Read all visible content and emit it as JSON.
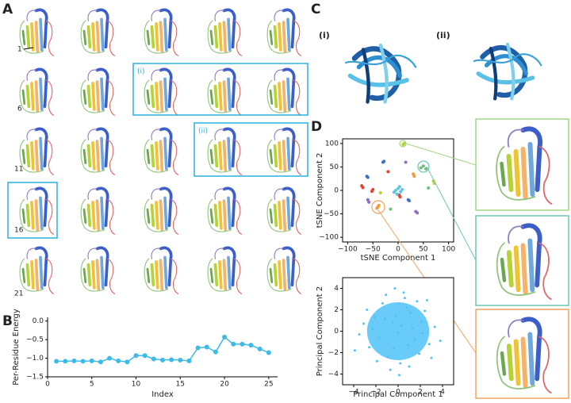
{
  "figure": {
    "panel_labels": [
      "A",
      "B",
      "C",
      "D"
    ],
    "model_indices": [
      "1",
      "6",
      "11",
      "16",
      "21"
    ],
    "subsets_a": [
      "(i)",
      "(ii)"
    ],
    "subsets_c": [
      "(i)",
      "(ii)"
    ]
  },
  "chart_data": [
    {
      "type": "line",
      "xlabel": "Index",
      "ylabel": "Per-Residue Energy",
      "color": "#3dbbe8",
      "x": [
        1,
        2,
        3,
        4,
        5,
        6,
        7,
        8,
        9,
        10,
        11,
        12,
        13,
        14,
        15,
        16,
        17,
        18,
        19,
        20,
        21,
        22,
        23,
        24,
        25
      ],
      "values": [
        -1.08,
        -1.08,
        -1.07,
        -1.08,
        -1.07,
        -1.1,
        -1.0,
        -1.07,
        -1.1,
        -0.93,
        -0.93,
        -1.02,
        -1.05,
        -1.04,
        -1.05,
        -1.07,
        -0.72,
        -0.7,
        -0.83,
        -0.43,
        -0.62,
        -0.62,
        -0.65,
        -0.75,
        -0.85
      ],
      "xlim": [
        0,
        26
      ],
      "ylim": [
        -1.5,
        0.1
      ],
      "xticks": [
        0,
        5,
        10,
        15,
        20,
        25
      ],
      "yticks": [
        {
          "value": 0,
          "label": "0.0"
        },
        {
          "value": -0.5,
          "label": "−0.5"
        },
        {
          "value": -1,
          "label": "−1.0"
        },
        {
          "value": -1.5,
          "label": "−1.5"
        }
      ]
    },
    {
      "type": "scatter",
      "xlabel": "tSNE Component 1",
      "ylabel": "tSNE Component 2",
      "xlim": [
        -110,
        110
      ],
      "ylim": [
        -110,
        110
      ],
      "xticks": [
        {
          "value": -100,
          "label": "−100"
        },
        {
          "value": -50,
          "label": "−50"
        },
        0,
        50,
        100
      ],
      "yticks": [
        {
          "value": -100,
          "label": "−100"
        },
        {
          "value": -50,
          "label": "−50"
        },
        0,
        50,
        100
      ],
      "series": [
        {
          "color": "#e8412c",
          "x": [
            -72,
            -70,
            -52,
            -50,
            2,
            4,
            -20
          ],
          "y": [
            10,
            6,
            -2,
            2,
            -10,
            -14,
            40
          ]
        },
        {
          "color": "#3a6fd8",
          "x": [
            -62,
            -60,
            -30,
            -28,
            20,
            22
          ],
          "y": [
            30,
            28,
            60,
            62,
            -20,
            -22
          ]
        },
        {
          "color": "#f29b38",
          "x": [
            -40,
            -38,
            -42,
            30,
            32
          ],
          "y": [
            -35,
            -32,
            -38,
            35,
            30
          ]
        },
        {
          "color": "#5cc8e0",
          "x": [
            -5,
            0,
            5,
            -2,
            3,
            8,
            -8
          ],
          "y": [
            0,
            4,
            -3,
            -8,
            8,
            2,
            -4
          ]
        },
        {
          "color": "#6cc07a",
          "x": [
            45,
            50,
            55,
            60,
            -15
          ],
          "y": [
            48,
            52,
            46,
            5,
            -40
          ]
        },
        {
          "color": "#b6d334",
          "x": [
            10,
            12,
            70,
            72,
            -35
          ],
          "y": [
            98,
            100,
            20,
            15,
            -5
          ]
        },
        {
          "color": "#8e6bc8",
          "x": [
            -60,
            -58,
            35,
            38,
            15
          ],
          "y": [
            -20,
            -25,
            -45,
            -48,
            60
          ]
        }
      ]
    },
    {
      "type": "scatter",
      "xlabel": "Principal Component 1",
      "ylabel": "Principal Component 2",
      "xlim": [
        -5,
        5
      ],
      "ylim": [
        -5,
        5
      ],
      "xticks": [
        {
          "value": -4,
          "label": "−4"
        },
        {
          "value": -2,
          "label": "−2"
        },
        0,
        2,
        4
      ],
      "yticks": [
        {
          "value": -4,
          "label": "−4"
        },
        {
          "value": -2,
          "label": "−2"
        },
        0,
        2,
        4
      ],
      "series": [
        {
          "color": "#4fc3f7",
          "x": [
            0.3,
            -1.2,
            1.5,
            -0.4,
            2.1,
            -2.3,
            0.8,
            -0.9,
            1.1,
            -1.7,
            0.2,
            2.8,
            -3.1,
            0.6,
            -0.2,
            1.9,
            -1.4,
            3.3,
            -2.6,
            0.0,
            1.3,
            -0.7,
            2.4,
            -1.9,
            0.5,
            -3.5,
            1.7,
            -0.5,
            3.0,
            -2.1,
            0.9,
            -1.1,
            2.2,
            -2.8,
            0.1,
            3.8,
            -3.9,
            1.0,
            -0.3,
            2.6
          ],
          "y": [
            0.5,
            1.1,
            -0.8,
            -1.6,
            0.9,
            0.2,
            2.2,
            -2.4,
            1.7,
            -0.6,
            -3.0,
            -1.2,
            0.7,
            3.1,
            1.4,
            -2.1,
            2.6,
            0.4,
            -1.5,
            -0.1,
            0.3,
            -3.6,
            1.9,
            -2.8,
            3.6,
            -0.3,
            2.8,
            0.8,
            -2.5,
            1.3,
            -1.3,
            3.4,
            -0.2,
            2.0,
            -4.1,
            -0.9,
            -1.8,
            -3.3,
            4.0,
            2.9
          ]
        }
      ]
    }
  ]
}
